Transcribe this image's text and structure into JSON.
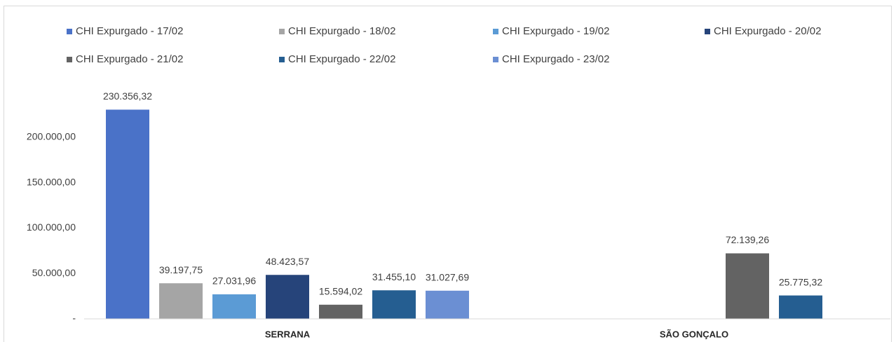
{
  "chart_data": {
    "type": "bar",
    "categories": [
      "SERRANA",
      "SÃO GONÇALO"
    ],
    "series": [
      {
        "name": "CHI Expurgado - 17/02",
        "color": "#4a72c8",
        "values": [
          230356.32,
          null
        ],
        "value_labels": [
          "230.356,32",
          null
        ]
      },
      {
        "name": "CHI Expurgado - 18/02",
        "color": "#a5a5a5",
        "values": [
          39197.75,
          null
        ],
        "value_labels": [
          "39.197,75",
          null
        ]
      },
      {
        "name": "CHI Expurgado - 19/02",
        "color": "#5b9bd5",
        "values": [
          27031.96,
          null
        ],
        "value_labels": [
          "27.031,96",
          null
        ]
      },
      {
        "name": "CHI Expurgado - 20/02",
        "color": "#26447a",
        "values": [
          48423.57,
          null
        ],
        "value_labels": [
          "48.423,57",
          null
        ]
      },
      {
        "name": "CHI Expurgado - 21/02",
        "color": "#636363",
        "values": [
          15594.02,
          72139.26
        ],
        "value_labels": [
          "15.594,02",
          "72.139,26"
        ]
      },
      {
        "name": "CHI Expurgado - 22/02",
        "color": "#255e91",
        "values": [
          31455.1,
          25775.32
        ],
        "value_labels": [
          "31.455,10",
          "25.775,32"
        ]
      },
      {
        "name": "CHI Expurgado - 23/02",
        "color": "#6b8fd3",
        "values": [
          31027.69,
          null
        ],
        "value_labels": [
          "31.027,69",
          null
        ]
      }
    ],
    "ylim": [
      0,
      250000
    ],
    "yticks": [
      {
        "value": 0,
        "label": "-"
      },
      {
        "value": 50000,
        "label": "50.000,00"
      },
      {
        "value": 100000,
        "label": "100.000,00"
      },
      {
        "value": 150000,
        "label": "150.000,00"
      },
      {
        "value": 200000,
        "label": "200.000,00"
      }
    ],
    "grid": false
  }
}
